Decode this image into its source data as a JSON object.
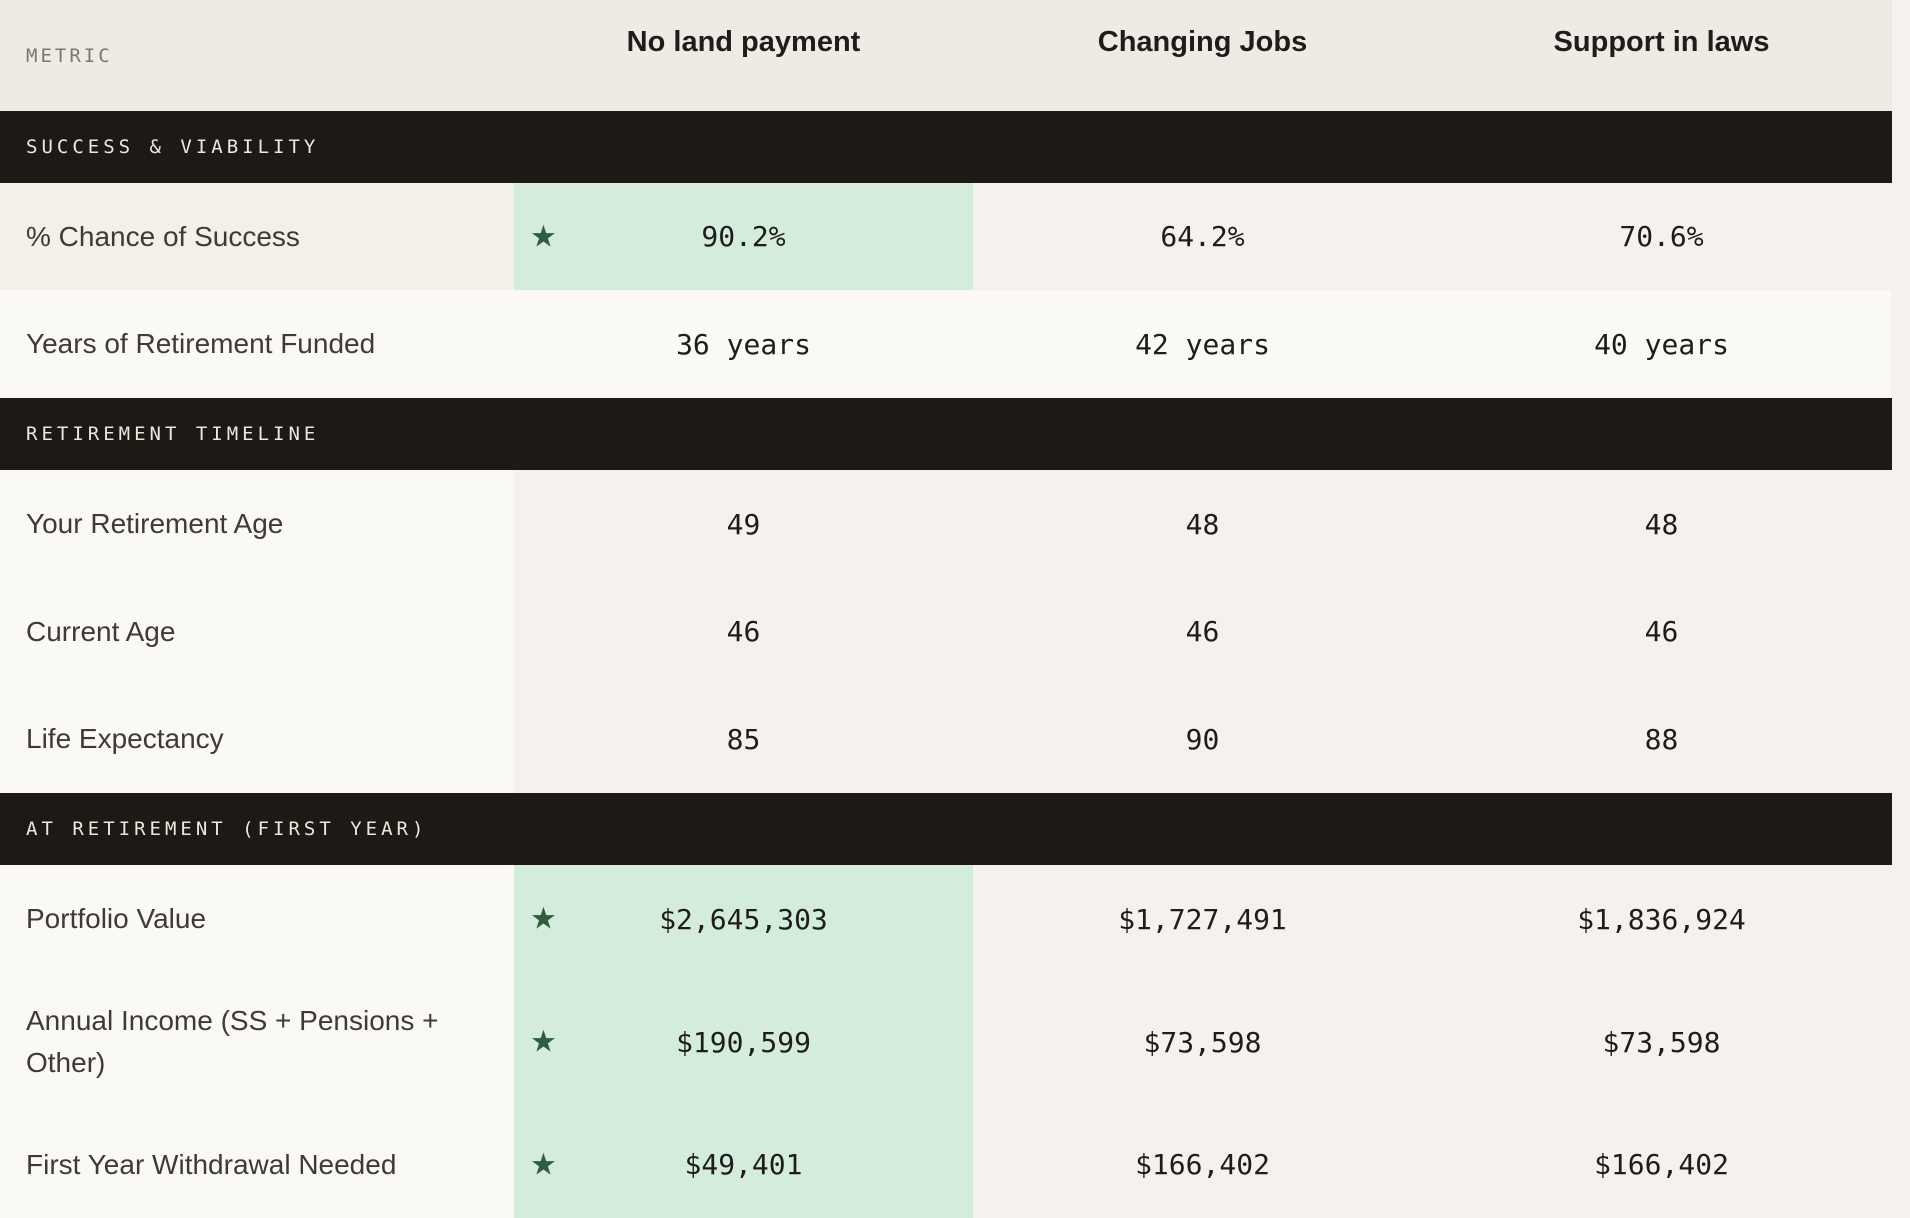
{
  "header": {
    "metric_label": "METRIC",
    "columns": [
      "No land payment",
      "Changing Jobs",
      "Support in laws"
    ]
  },
  "sections": [
    {
      "title": "SUCCESS & VIABILITY",
      "rows": [
        {
          "label": "% Chance of Success",
          "values": [
            "90.2%",
            "64.2%",
            "70.6%"
          ],
          "best": 0
        },
        {
          "label": "Years of Retirement Funded",
          "values": [
            "36 years",
            "42 years",
            "40 years"
          ],
          "best": null
        }
      ]
    },
    {
      "title": "RETIREMENT TIMELINE",
      "rows": [
        {
          "label": "Your Retirement Age",
          "values": [
            "49",
            "48",
            "48"
          ],
          "best": null
        },
        {
          "label": "Current Age",
          "values": [
            "46",
            "46",
            "46"
          ],
          "best": null
        },
        {
          "label": "Life Expectancy",
          "values": [
            "85",
            "90",
            "88"
          ],
          "best": null
        }
      ]
    },
    {
      "title": "AT RETIREMENT (FIRST YEAR)",
      "rows": [
        {
          "label": "Portfolio Value",
          "values": [
            "$2,645,303",
            "$1,727,491",
            "$1,836,924"
          ],
          "best": 0
        },
        {
          "label": "Annual Income (SS + Pensions + Other)",
          "values": [
            "$190,599",
            "$73,598",
            "$73,598"
          ],
          "best": 0
        },
        {
          "label": "First Year Withdrawal Needed",
          "values": [
            "$49,401",
            "$166,402",
            "$166,402"
          ],
          "best": 0
        }
      ]
    }
  ],
  "best_marker": "★",
  "colors": {
    "best_highlight": "#d4ecdb",
    "section_bg": "#1d1a16",
    "star": "#2f5e3c"
  }
}
